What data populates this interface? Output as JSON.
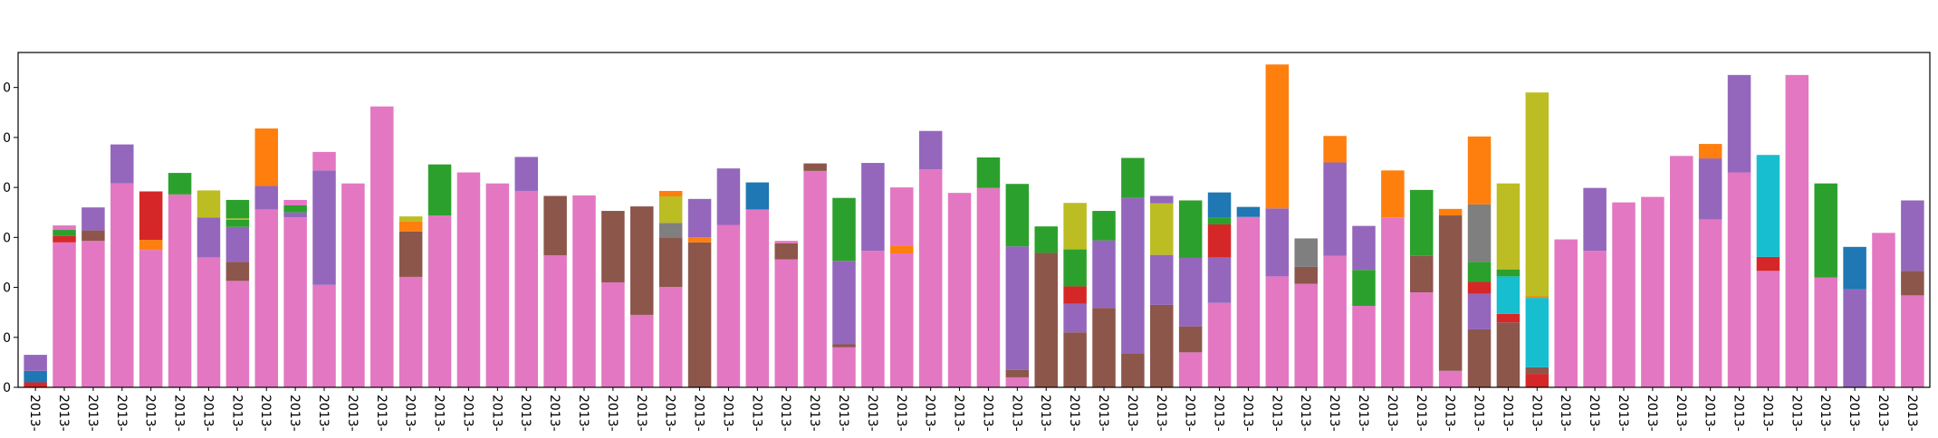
{
  "chart_data": {
    "type": "bar",
    "stacked": true,
    "title": "",
    "xlabel": "",
    "ylabel": "",
    "ylim": [
      0,
      67
    ],
    "yticks": [
      0,
      10,
      20,
      30,
      40,
      50,
      60
    ],
    "ytick_labels": [
      "0",
      "0",
      "0",
      "0",
      "0",
      "0",
      "0"
    ],
    "grid": false,
    "legend": "none",
    "category_label": "2013-",
    "palette": {
      "blue": "#1f77b4",
      "orange": "#ff7f0e",
      "green": "#2ca02c",
      "red": "#d62728",
      "purple": "#9467bd",
      "brown": "#8c564b",
      "pink": "#e377c2",
      "gray": "#7f7f7f",
      "olive": "#bcbd22",
      "cyan": "#17becf"
    },
    "stack_order": [
      "red",
      "blue",
      "orange",
      "green",
      "olive",
      "gray",
      "cyan",
      "brown",
      "purple",
      "pink"
    ],
    "bars": [
      {
        "red": 1,
        "blue": 2.3,
        "purple": 3.2
      },
      {
        "pink": 29,
        "red": 1.3,
        "green": 1.2,
        "pink2": 0.9
      },
      {
        "pink": 29.3,
        "brown": 2.1,
        "purple": 4.6
      },
      {
        "pink": 40.8,
        "purple": 7.8
      },
      {
        "pink": 27.5,
        "orange": 2,
        "red": 9.7
      },
      {
        "pink": 38.6,
        "green": 4.3
      },
      {
        "pink": 26,
        "purple": 8,
        "olive": 5.4
      },
      {
        "pink": 21.3,
        "brown": 3.8,
        "purple": 7,
        "green": 1.4,
        "olive": 0.3,
        "green2": 3.7
      },
      {
        "pink": 35.6,
        "purple": 4.7,
        "orange": 11.5
      },
      {
        "pink": 34,
        "purple": 1,
        "green": 1.4,
        "pink2": 1.1
      },
      {
        "pink": 20.5,
        "purple": 22.9,
        "pink2": 3.7
      },
      {
        "pink": 40.8
      },
      {
        "pink": 56.2
      },
      {
        "pink": 22.1,
        "brown": 9.1,
        "orange": 2,
        "olive": 1
      },
      {
        "pink": 34.4,
        "green": 10.2
      },
      {
        "pink": 43
      },
      {
        "pink": 40.8
      },
      {
        "pink": 39.3,
        "purple": 6.8
      },
      {
        "pink": 26.4,
        "brown": 11.9
      },
      {
        "pink": 38.4
      },
      {
        "pink": 21,
        "brown": 14.3
      },
      {
        "pink": 14.5,
        "brown": 21.7
      },
      {
        "pink": 20.1,
        "brown": 9.9,
        "gray": 2.9,
        "olive": 5.3,
        "orange": 1.1
      },
      {
        "brown": 29,
        "orange": 1,
        "purple": 7.7
      },
      {
        "pink": 32.5,
        "purple": 11.3
      },
      {
        "pink": 35.6,
        "blue": 5.4
      },
      {
        "pink": 25.6,
        "brown": 3.2,
        "pink2": 0.5
      },
      {
        "pink": 43.3,
        "brown": 1.5
      },
      {
        "pink": 8,
        "brown": 0.6,
        "purple": 16.7,
        "green": 12.6
      },
      {
        "pink": 27.3,
        "purple": 17.6
      },
      {
        "pink": 26.8,
        "orange": 1.6,
        "pink2": 11.6
      },
      {
        "pink": 43.6,
        "purple": 7.7
      },
      {
        "pink": 38.9
      },
      {
        "pink": 39.9,
        "green": 6.1
      },
      {
        "pink": 2,
        "brown": 1.5,
        "purple": 24.7,
        "green": 12.5
      },
      {
        "brown": 26.9,
        "green": 5.3
      },
      {
        "brown": 11,
        "purple": 5.7,
        "red": 3.5,
        "green": 7.4,
        "olive": 9.3
      },
      {
        "brown": 15.9,
        "purple": 13.5,
        "green": 5.9
      },
      {
        "brown": 6.7,
        "purple": 31.2,
        "green": 8
      },
      {
        "brown": 16.5,
        "purple": 10,
        "olive": 10.3,
        "purple2": 1.5
      },
      {
        "pink": 7,
        "brown": 5.2,
        "purple": 13.7,
        "green": 11.5
      },
      {
        "pink": 16.9,
        "purple": 9.1,
        "red": 6.6,
        "green": 1.3,
        "blue": 5.1
      },
      {
        "pink": 34.1,
        "blue": 2
      },
      {
        "pink": 22.2,
        "purple": 13.6,
        "orange": 28.8
      },
      {
        "pink": 20.7,
        "brown": 3.4,
        "gray": 5.7
      },
      {
        "pink": 26.3,
        "purple": 18.7,
        "orange": 5.3
      },
      {
        "pink": 16.3,
        "green": 7.2,
        "purple": 8.8
      },
      {
        "pink": 34,
        "orange": 9.4
      },
      {
        "pink": 19,
        "brown": 7.3,
        "green": 13.2
      },
      {
        "pink": 3.3,
        "brown": 31.1,
        "orange": 1.3
      },
      {
        "brown": 11.6,
        "purple": 7.1,
        "red": 2.4,
        "green": 4,
        "gray": 11.5,
        "orange": 13.6
      },
      {
        "brown": 13,
        "red": 1.7,
        "cyan": 7.5,
        "green": 1.4,
        "olive": 17.2
      },
      {
        "red": 2.7,
        "brown": 1.3,
        "cyan": 13.9,
        "orange": 0.3,
        "olive": 40.8
      },
      {
        "pink": 29.6
      },
      {
        "pink": 27.3,
        "purple": 12.6
      },
      {
        "pink": 37
      },
      {
        "pink": 38.1
      },
      {
        "pink": 46.3
      },
      {
        "pink": 33.6,
        "purple": 12.2,
        "orange": 2.9
      },
      {
        "pink": 43,
        "purple": 19.5
      },
      {
        "pink": 23.3,
        "red": 2.8,
        "cyan": 20.4
      },
      {
        "pink": 62.5
      },
      {
        "pink": 22,
        "green": 18.8
      },
      {
        "purple": 19.6,
        "blue": 8.5
      },
      {
        "pink": 30.9
      },
      {
        "pink": 18.4,
        "brown": 4.9,
        "purple": 14.1
      }
    ]
  }
}
